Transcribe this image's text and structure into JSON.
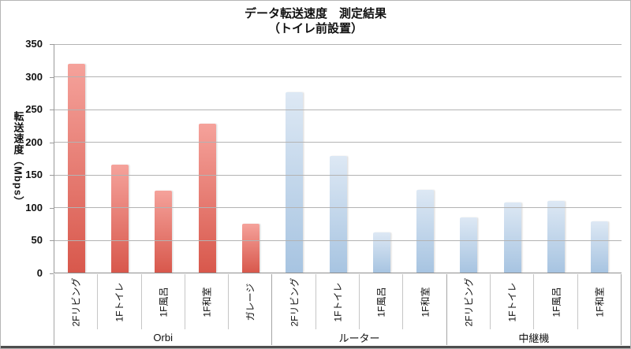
{
  "title": {
    "line1": "データ転送速度　測定結果",
    "line2": "（トイレ前設置）"
  },
  "colors": {
    "orbi_bar_top": "#f5a29b",
    "orbi_bar_bottom": "#d8584c",
    "router_bar_top": "#dde8f4",
    "router_bar_bottom": "#a7c4e1",
    "gridline": "#b3b3b3",
    "axis": "#9a9a9a",
    "frame_bottom": "#4d4d4d"
  },
  "chart_data": {
    "type": "bar",
    "title": "データ転送速度　測定結果（トイレ前設置）",
    "ylabel": "転送速度（Mbps）",
    "xlabel": "",
    "ylim": [
      0,
      350
    ],
    "yticks": [
      350,
      300,
      250,
      200,
      150,
      100,
      50,
      0
    ],
    "grid": true,
    "legend": false,
    "groups": [
      {
        "name": "Orbi",
        "bar_color_top": "#f5a29b",
        "bar_color_bottom": "#d8584c",
        "categories": [
          "2Fリビング",
          "1Fトイレ",
          "1F風呂",
          "1F和室",
          "ガレージ"
        ],
        "values": [
          320,
          165,
          125,
          228,
          75
        ]
      },
      {
        "name": "ルーター",
        "bar_color_top": "#dde8f4",
        "bar_color_bottom": "#a7c4e1",
        "categories": [
          "2Fリビング",
          "1Fトイレ",
          "1F風呂",
          "1F和室"
        ],
        "values": [
          277,
          179,
          62,
          127
        ]
      },
      {
        "name": "中継機",
        "bar_color_top": "#dde8f4",
        "bar_color_bottom": "#a7c4e1",
        "categories": [
          "2Fリビング",
          "1Fトイレ",
          "1F風呂",
          "1F和室"
        ],
        "values": [
          85,
          107,
          110,
          79
        ]
      }
    ]
  }
}
